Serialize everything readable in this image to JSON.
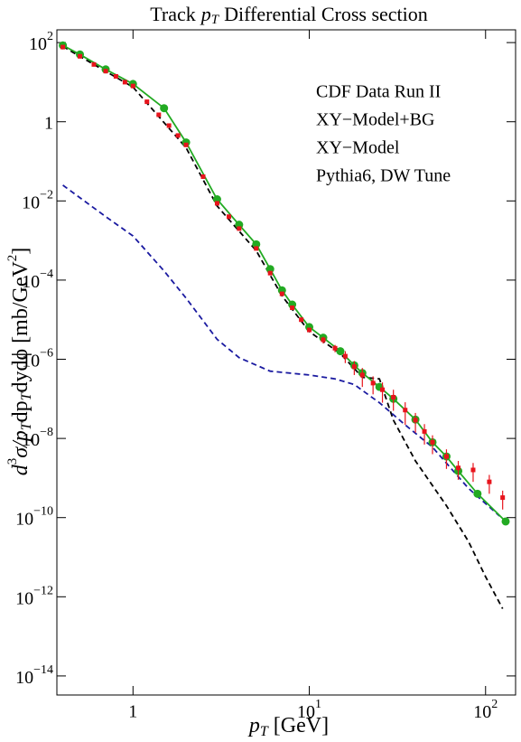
{
  "chart_data": {
    "type": "line",
    "title": [
      "Track",
      "p",
      "T",
      "Differential Cross section"
    ],
    "xlabel": [
      "p",
      "T",
      "[GeV]"
    ],
    "ylabel": [
      "d",
      "3",
      "σ/",
      "p",
      "T",
      "dp",
      "T",
      "dydϕ [mb/GeV",
      "2",
      "]"
    ],
    "xscale": "log",
    "yscale": "log",
    "xlim": [
      0.37,
      148
    ],
    "ylim": [
      3.3e-15,
      210
    ],
    "xticks": [
      1,
      {
        "value": 10,
        "label": "10",
        "exp": "1"
      },
      {
        "value": 100,
        "label": "10",
        "exp": "2"
      }
    ],
    "yticks": [
      {
        "value": 100,
        "label": "10",
        "exp": "2"
      },
      1,
      {
        "value": 0.01,
        "label": "10",
        "exp": "−2"
      },
      {
        "value": 0.0001,
        "label": "10",
        "exp": "−4"
      },
      {
        "value": 1e-06,
        "label": "10",
        "exp": "−6"
      },
      {
        "value": 1e-08,
        "label": "10",
        "exp": "−8"
      },
      {
        "value": 1e-10,
        "label": "10",
        "exp": "−10"
      },
      {
        "value": 1e-12,
        "label": "10",
        "exp": "−12"
      },
      {
        "value": 1e-14,
        "label": "10",
        "exp": "−14"
      }
    ],
    "legend": "top right",
    "series": [
      {
        "name": "CDF Data Run II",
        "color": "#e8141c",
        "marker": "square",
        "linestyle": "none",
        "x": [
          0.4,
          0.5,
          0.6,
          0.7,
          0.8,
          0.9,
          1,
          1.2,
          1.4,
          1.6,
          1.8,
          2,
          2.5,
          3,
          3.5,
          4,
          5,
          6,
          7,
          8,
          9,
          10,
          12,
          14,
          16,
          18,
          20,
          23,
          26,
          30,
          35,
          40,
          45,
          50,
          60,
          70,
          85,
          105,
          125
        ],
        "values": [
          77,
          45,
          28,
          19,
          14,
          10,
          8,
          3.2,
          1.5,
          0.8,
          0.45,
          0.26,
          0.041,
          0.0087,
          0.004,
          0.002,
          0.00063,
          0.00015,
          4.5e-05,
          2e-05,
          1e-05,
          5.5e-06,
          3.1e-06,
          1.9e-06,
          1.2e-06,
          6.5e-07,
          4e-07,
          2.5e-07,
          1.7e-07,
          1.1e-07,
          5.2e-08,
          2.9e-08,
          1.5e-08,
          8e-09,
          3.5e-09,
          1.8e-09,
          1.6e-09,
          8e-10,
          3.2e-10
        ],
        "errors": [
          7.7,
          4.5,
          2.8,
          1.9,
          1.4,
          1,
          0.8,
          0.32,
          0.15,
          0.08,
          0.045,
          0.026,
          0.0041,
          0.00087,
          0.0004,
          0.0002,
          6.3e-05,
          1.5e-05,
          4.5e-06,
          2e-06,
          1e-06,
          5.5e-07,
          6e-07,
          4e-07,
          4e-07,
          2.5e-07,
          2e-07,
          1.2e-07,
          9e-08,
          6e-08,
          3e-08,
          1.5e-08,
          8e-09,
          4e-09,
          1.8e-09,
          9e-10,
          8e-10,
          4e-10,
          1.6e-10
        ]
      },
      {
        "name": "XY−Model+BG",
        "color": "#22aa22",
        "marker": "circle",
        "linestyle": "solid",
        "x": [
          0.4,
          0.5,
          0.7,
          1,
          1.5,
          2,
          3,
          4,
          5,
          6,
          7,
          8,
          10,
          12,
          15,
          18,
          20,
          25,
          30,
          40,
          50,
          60,
          70,
          90,
          130
        ],
        "values": [
          85,
          50,
          21,
          9,
          2.2,
          0.3,
          0.011,
          0.0025,
          0.0008,
          0.00019,
          5.5e-05,
          2.4e-05,
          6.5e-06,
          3.5e-06,
          1.6e-06,
          7e-07,
          4.5e-07,
          2e-07,
          1e-07,
          3e-08,
          8e-09,
          3.5e-09,
          1.5e-09,
          4e-10,
          8e-11
        ]
      },
      {
        "name": "XY−Model",
        "color": "#1a1aa0",
        "marker": "none",
        "linestyle": "dashed",
        "x": [
          0.4,
          0.7,
          1,
          1.5,
          2,
          3,
          4,
          6,
          10,
          14,
          18,
          25,
          35,
          50,
          80,
          120
        ],
        "values": [
          0.025,
          0.004,
          0.0013,
          0.00017,
          3.5e-05,
          3.2e-06,
          1.1e-06,
          5e-07,
          4e-07,
          3.2e-07,
          2.3e-07,
          8e-08,
          2.2e-08,
          6e-09,
          5.5e-10,
          1.1e-10
        ]
      },
      {
        "name": "Pythia6, DW Tune",
        "color": "#000000",
        "marker": "none",
        "linestyle": "dashed",
        "x": [
          0.4,
          1,
          2,
          3,
          5,
          7,
          10,
          15,
          20,
          25,
          30,
          40,
          60,
          80,
          100,
          125
        ],
        "values": [
          80,
          7.5,
          0.22,
          0.0075,
          0.00055,
          4e-05,
          5e-06,
          1.4e-06,
          3.5e-07,
          3.2e-07,
          2.9e-08,
          2.7e-09,
          2e-10,
          2.5e-11,
          3.2e-12,
          5e-13
        ]
      }
    ]
  }
}
